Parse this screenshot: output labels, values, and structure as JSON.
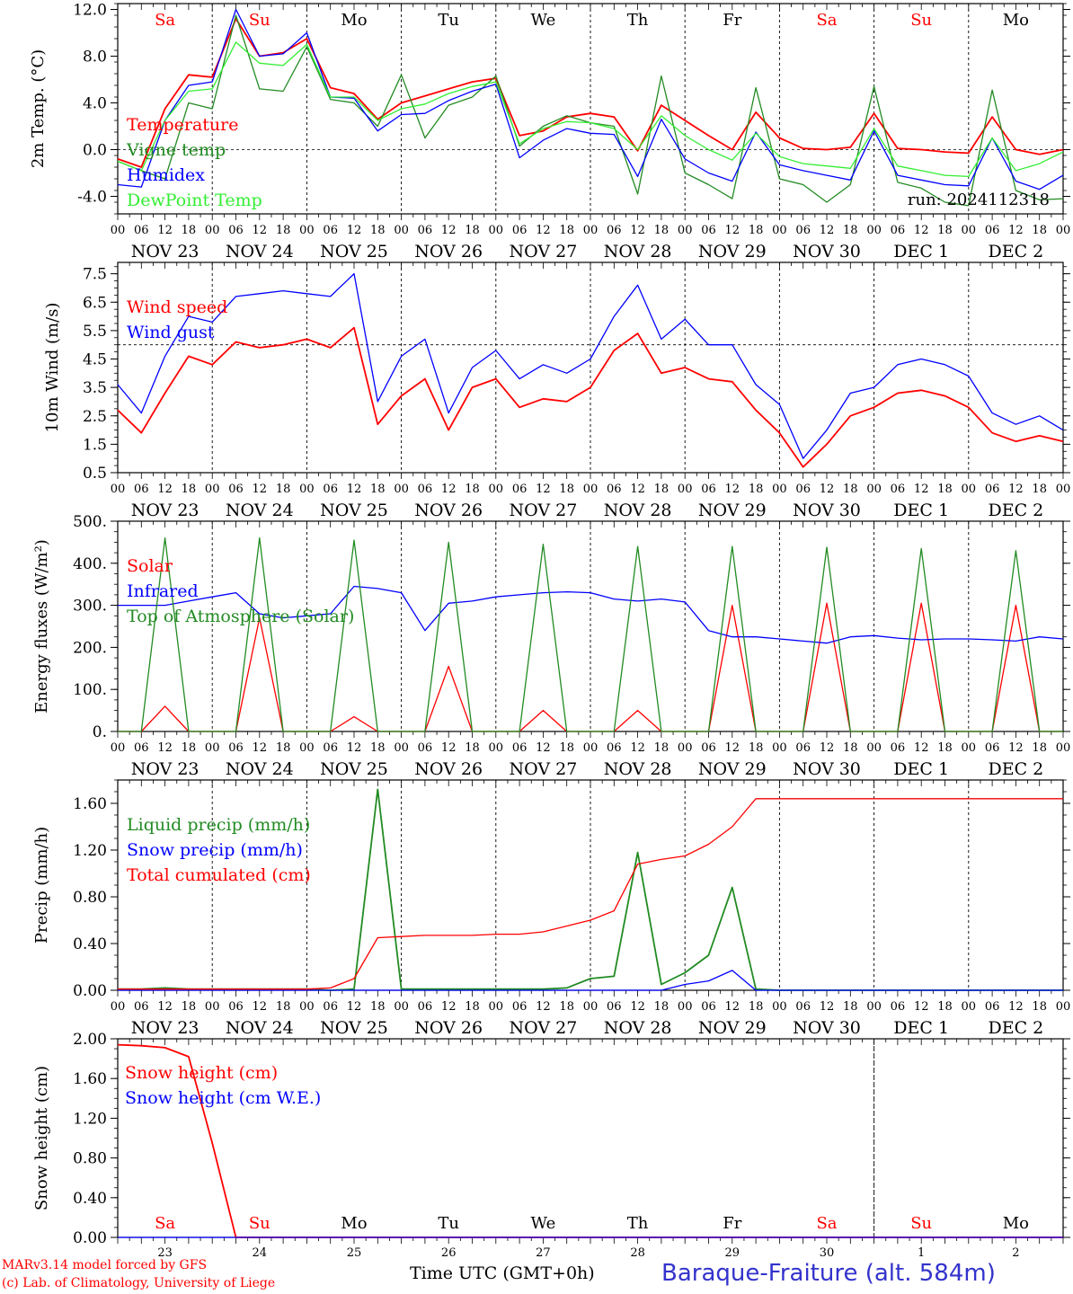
{
  "chart_data": [
    {
      "type": "line",
      "ylabel": "2m Temp. (°C)",
      "ylim": [
        -5.5,
        12.5
      ],
      "y_ticks": [
        "12.0",
        "8.0",
        "4.0",
        "0.0",
        "-4.0"
      ],
      "x_hours": [
        0,
        6,
        12,
        18,
        24,
        30,
        36,
        42,
        48,
        54,
        60,
        66,
        72,
        78,
        84,
        90,
        96,
        102,
        108,
        114,
        120,
        126,
        132,
        138,
        144,
        150,
        156,
        162,
        168,
        174,
        180,
        186,
        192,
        198,
        204,
        210,
        216,
        222,
        228,
        234,
        240
      ],
      "annotation": "run: 2024112318",
      "reference_line": 0,
      "series": [
        {
          "name": "Temperature",
          "color": "#ff0000",
          "values": [
            -0.8,
            -1.5,
            3.5,
            6.4,
            6.2,
            11.2,
            8.0,
            8.3,
            9.5,
            5.3,
            4.8,
            2.6,
            4.0,
            4.6,
            5.2,
            5.8,
            6.1,
            1.2,
            1.6,
            2.8,
            3.1,
            2.8,
            -0.1,
            3.8,
            2.5,
            1.2,
            0.0,
            3.2,
            1.0,
            0.1,
            0.0,
            0.2,
            3.1,
            0.1,
            0.0,
            -0.2,
            -0.3,
            2.8,
            0.0,
            -0.4,
            0.0
          ]
        },
        {
          "name": "Vigne temp",
          "color": "#228b22",
          "values": [
            -1.0,
            -1.8,
            -2.5,
            4.0,
            3.5,
            11.5,
            5.2,
            5.0,
            8.8,
            4.3,
            4.0,
            2.0,
            6.4,
            1.0,
            3.8,
            4.5,
            6.3,
            0.3,
            2.0,
            2.9,
            2.3,
            2.0,
            -3.8,
            6.3,
            -2.0,
            -3.0,
            -4.2,
            5.3,
            -2.5,
            -3.0,
            -4.5,
            -3.0,
            5.4,
            -2.8,
            -3.3,
            -4.5,
            -4.8,
            5.1,
            -3.5,
            -4.3,
            -4.2
          ]
        },
        {
          "name": "Humidex",
          "color": "#0000ff",
          "values": [
            -3.0,
            -3.2,
            2.5,
            5.5,
            5.8,
            12.0,
            8.0,
            8.2,
            10.0,
            4.5,
            4.4,
            1.6,
            3.0,
            3.1,
            4.2,
            5.0,
            5.6,
            -0.7,
            0.8,
            1.8,
            1.4,
            1.3,
            -2.3,
            2.6,
            -0.8,
            -2.0,
            -2.7,
            1.5,
            -1.3,
            -1.8,
            -2.2,
            -2.6,
            1.6,
            -2.2,
            -2.6,
            -3.0,
            -3.1,
            1.0,
            -2.7,
            -3.4,
            -2.2
          ]
        },
        {
          "name": "DewPoint Temp",
          "color": "#33ee33",
          "values": [
            -1.0,
            -1.8,
            2.5,
            5.0,
            5.2,
            9.2,
            7.4,
            7.2,
            9.0,
            4.5,
            4.5,
            2.5,
            3.5,
            3.9,
            4.8,
            5.4,
            5.8,
            0.5,
            1.8,
            2.4,
            2.3,
            1.8,
            0.0,
            2.9,
            1.2,
            0.0,
            -0.9,
            1.4,
            -0.6,
            -1.2,
            -1.4,
            -1.6,
            1.8,
            -1.4,
            -1.8,
            -2.2,
            -2.3,
            1.0,
            -1.8,
            -1.2,
            -0.2
          ]
        }
      ]
    },
    {
      "type": "line",
      "ylabel": "10m Wind (m/s)",
      "ylim": [
        0.5,
        7.9
      ],
      "y_ticks": [
        "7.5",
        "6.5",
        "5.5",
        "4.5",
        "3.5",
        "2.5",
        "1.5",
        "0.5"
      ],
      "x_hours": [
        0,
        6,
        12,
        18,
        24,
        30,
        36,
        42,
        48,
        54,
        60,
        66,
        72,
        78,
        84,
        90,
        96,
        102,
        108,
        114,
        120,
        126,
        132,
        138,
        144,
        150,
        156,
        162,
        168,
        174,
        180,
        186,
        192,
        198,
        204,
        210,
        216,
        222,
        228,
        234,
        240
      ],
      "reference_line": 5,
      "series": [
        {
          "name": "Wind speed",
          "color": "#ff0000",
          "values": [
            2.7,
            1.9,
            3.3,
            4.6,
            4.3,
            5.1,
            4.9,
            5.0,
            5.2,
            4.9,
            5.6,
            2.2,
            3.2,
            3.8,
            2.0,
            3.5,
            3.8,
            2.8,
            3.1,
            3.0,
            3.5,
            4.8,
            5.4,
            4.0,
            4.2,
            3.8,
            3.7,
            2.7,
            1.9,
            0.7,
            1.5,
            2.5,
            2.8,
            3.3,
            3.4,
            3.2,
            2.8,
            1.9,
            1.6,
            1.8,
            1.6
          ]
        },
        {
          "name": "Wind gust",
          "color": "#0000ff",
          "values": [
            3.6,
            2.6,
            4.6,
            6.0,
            5.8,
            6.7,
            6.8,
            6.9,
            6.8,
            6.7,
            7.5,
            3.0,
            4.6,
            5.2,
            2.6,
            4.2,
            4.8,
            3.8,
            4.3,
            4.0,
            4.5,
            6.0,
            7.1,
            5.2,
            5.9,
            5.0,
            5.0,
            3.6,
            2.9,
            1.0,
            2.0,
            3.3,
            3.5,
            4.3,
            4.5,
            4.3,
            3.9,
            2.6,
            2.2,
            2.5,
            2.0
          ]
        }
      ]
    },
    {
      "type": "line",
      "ylabel": "Energy fluxes (W/m²)",
      "ylim": [
        0,
        500
      ],
      "y_ticks": [
        "500.",
        "400.",
        "300.",
        "200.",
        "100.",
        "0."
      ],
      "x_hours": [
        0,
        6,
        12,
        18,
        24,
        30,
        36,
        42,
        48,
        54,
        60,
        66,
        72,
        78,
        84,
        90,
        96,
        102,
        108,
        114,
        120,
        126,
        132,
        138,
        144,
        150,
        156,
        162,
        168,
        174,
        180,
        186,
        192,
        198,
        204,
        210,
        216,
        222,
        228,
        234,
        240
      ],
      "series": [
        {
          "name": "Solar",
          "color": "#ff0000",
          "values": [
            0,
            0,
            60,
            0,
            0,
            0,
            270,
            0,
            0,
            0,
            35,
            0,
            0,
            0,
            155,
            0,
            0,
            0,
            50,
            0,
            0,
            0,
            50,
            0,
            0,
            0,
            300,
            0,
            0,
            0,
            305,
            0,
            0,
            0,
            305,
            0,
            0,
            0,
            300,
            0,
            0
          ]
        },
        {
          "name": "Infrared",
          "color": "#0000ff",
          "values": [
            300,
            300,
            300,
            310,
            320,
            330,
            280,
            270,
            275,
            280,
            345,
            340,
            330,
            240,
            305,
            310,
            320,
            325,
            330,
            332,
            330,
            315,
            310,
            315,
            308,
            240,
            225,
            225,
            220,
            215,
            210,
            225,
            228,
            222,
            218,
            220,
            220,
            218,
            215,
            225,
            220
          ]
        },
        {
          "name": "Top of Atmosphere (Solar)",
          "color": "#228b22",
          "values": [
            0,
            0,
            460,
            0,
            0,
            0,
            460,
            0,
            0,
            0,
            455,
            0,
            0,
            0,
            450,
            0,
            0,
            0,
            445,
            0,
            0,
            0,
            440,
            0,
            0,
            0,
            440,
            0,
            0,
            0,
            438,
            0,
            0,
            0,
            435,
            0,
            0,
            0,
            430,
            0,
            0
          ]
        }
      ]
    },
    {
      "type": "line",
      "ylabel": "Precip (mm/h)",
      "ylim": [
        0,
        1.8
      ],
      "y_ticks": [
        "1.60",
        "1.20",
        "0.80",
        "0.40",
        "0.00"
      ],
      "x_hours": [
        0,
        6,
        12,
        18,
        24,
        30,
        36,
        42,
        48,
        54,
        60,
        66,
        72,
        78,
        84,
        90,
        96,
        102,
        108,
        114,
        120,
        126,
        132,
        138,
        144,
        150,
        156,
        162,
        168,
        174,
        180,
        186,
        192,
        198,
        204,
        210,
        216,
        222,
        228,
        234,
        240
      ],
      "series": [
        {
          "name": "Liquid precip (mm/h)",
          "color": "#228b22",
          "values": [
            0.01,
            0.01,
            0.02,
            0.01,
            0.01,
            0.01,
            0.01,
            0.01,
            0.01,
            0.0,
            0.01,
            1.72,
            0.01,
            0.01,
            0.01,
            0.01,
            0.01,
            0.01,
            0.01,
            0.02,
            0.1,
            0.12,
            1.18,
            0.05,
            0.15,
            0.3,
            0.88,
            0.01,
            0.0,
            0.0,
            0.0,
            0.0,
            0.0,
            0.0,
            0.0,
            0.0,
            0.0,
            0.0,
            0.0,
            0.0,
            0.0
          ]
        },
        {
          "name": "Snow precip (mm/h)",
          "color": "#0000ff",
          "values": [
            0.0,
            0.0,
            0.0,
            0.0,
            0.0,
            0.0,
            0.0,
            0.0,
            0.0,
            0.0,
            0.0,
            0.0,
            0.0,
            0.0,
            0.0,
            0.0,
            0.0,
            0.0,
            0.0,
            0.0,
            0.0,
            0.0,
            0.0,
            0.0,
            0.05,
            0.08,
            0.17,
            0.0,
            0.0,
            0.0,
            0.0,
            0.0,
            0.0,
            0.0,
            0.0,
            0.0,
            0.0,
            0.0,
            0.0,
            0.0,
            0.0
          ]
        },
        {
          "name": "Total cumulated (cm)",
          "color": "#ff0000",
          "values": [
            0.01,
            0.01,
            0.01,
            0.01,
            0.01,
            0.01,
            0.01,
            0.01,
            0.01,
            0.02,
            0.1,
            0.45,
            0.46,
            0.47,
            0.47,
            0.47,
            0.48,
            0.48,
            0.5,
            0.55,
            0.6,
            0.68,
            1.08,
            1.12,
            1.15,
            1.25,
            1.4,
            1.64,
            1.64,
            1.64,
            1.64,
            1.64,
            1.64,
            1.64,
            1.64,
            1.64,
            1.64,
            1.64,
            1.64,
            1.64,
            1.64
          ]
        }
      ]
    },
    {
      "type": "line",
      "ylabel": "Snow height (cm)",
      "ylim": [
        0,
        2.0
      ],
      "y_ticks": [
        "2.00",
        "1.60",
        "1.20",
        "0.80",
        "0.40",
        "0.00"
      ],
      "x_hours": [
        0,
        6,
        12,
        18,
        24,
        30,
        36,
        42,
        48,
        54,
        60,
        66,
        72,
        78,
        84,
        90,
        96,
        102,
        108,
        114,
        120,
        126,
        132,
        138,
        144,
        150,
        156,
        162,
        168,
        174,
        180,
        186,
        192,
        198,
        204,
        210,
        216,
        222,
        228,
        234,
        240
      ],
      "series": [
        {
          "name": "Snow height (cm)",
          "color": "#ff0000",
          "values": [
            1.94,
            1.93,
            1.91,
            1.82,
            0.95,
            0.0,
            0.0,
            0.0,
            0.0,
            0.0,
            0.0,
            0.0,
            0.0,
            0.0,
            0.0,
            0.0,
            0.0,
            0.0,
            0.0,
            0.0,
            0.0,
            0.0,
            0.0,
            0.0,
            0.0,
            0.0,
            0.0,
            0.0,
            0.0,
            0.0,
            0.0,
            0.0,
            0.0,
            0.0,
            0.0,
            0.0,
            0.0,
            0.0,
            0.0,
            0.0,
            0.0
          ]
        },
        {
          "name": "Snow height (cm W.E.)",
          "color": "#0000ff",
          "values": [
            0.0,
            0.0,
            0.0,
            0.0,
            0.0,
            0.0,
            0.0,
            0.0,
            0.0,
            0.0,
            0.0,
            0.0,
            0.0,
            0.0,
            0.0,
            0.0,
            0.0,
            0.0,
            0.0,
            0.0,
            0.0,
            0.0,
            0.0,
            0.0,
            0.0,
            0.0,
            0.0,
            0.0,
            0.0,
            0.0,
            0.0,
            0.0,
            0.0,
            0.0,
            0.0,
            0.0,
            0.0,
            0.0,
            0.0,
            0.0,
            0.0
          ]
        }
      ]
    }
  ],
  "days": [
    {
      "abbr": "Sa",
      "date": "NOV 23",
      "num": "23",
      "weekend": true
    },
    {
      "abbr": "Su",
      "date": "NOV 24",
      "num": "24",
      "weekend": true
    },
    {
      "abbr": "Mo",
      "date": "NOV 25",
      "num": "25",
      "weekend": false
    },
    {
      "abbr": "Tu",
      "date": "NOV 26",
      "num": "26",
      "weekend": false
    },
    {
      "abbr": "We",
      "date": "NOV 27",
      "num": "27",
      "weekend": false
    },
    {
      "abbr": "Th",
      "date": "NOV 28",
      "num": "28",
      "weekend": false
    },
    {
      "abbr": "Fr",
      "date": "NOV 29",
      "num": "29",
      "weekend": false
    },
    {
      "abbr": "Sa",
      "date": "NOV 30",
      "num": "30",
      "weekend": true
    },
    {
      "abbr": "Su",
      "date": "DEC  1",
      "num": "1",
      "weekend": true
    },
    {
      "abbr": "Mo",
      "date": "DEC  2",
      "num": "2",
      "weekend": false
    }
  ],
  "hour_labels": [
    "00",
    "06",
    "12",
    "18"
  ],
  "last_hour_label": "00",
  "x_axis_label": "Time UTC (GMT+0h)",
  "station_title": "Baraque-Fraiture (alt. 584m)",
  "footer_line1": "MARv3.14 model forced by GFS",
  "footer_line2": "(c) Lab. of Climatology, University of Liege",
  "colors": {
    "weekend_red": "#ff0000",
    "weekday_black": "#000000",
    "title_blue": "#3333cc"
  }
}
